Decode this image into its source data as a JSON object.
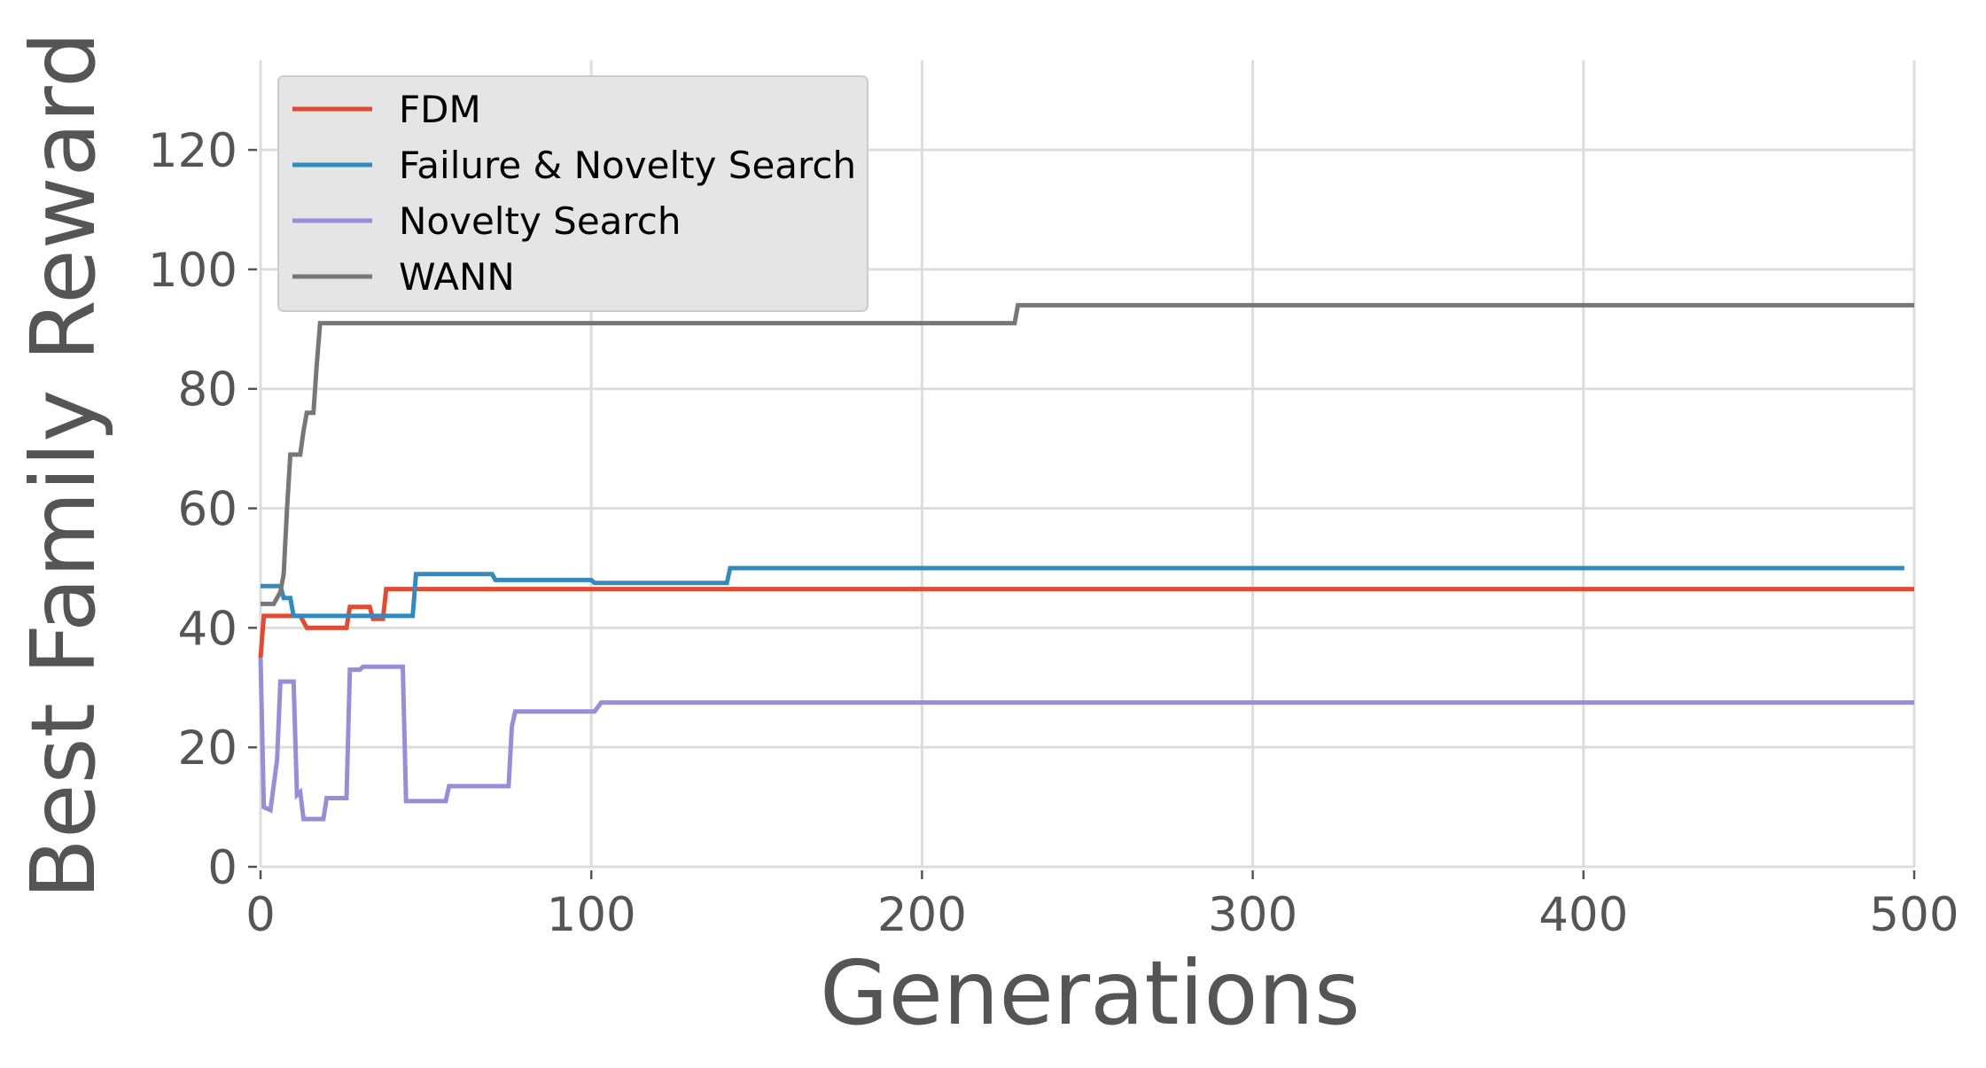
{
  "chart_data": {
    "type": "line",
    "title": "",
    "xlabel": "Generations",
    "ylabel": "Best Family Reward",
    "xlim": [
      0,
      500
    ],
    "ylim": [
      0,
      135
    ],
    "xticks": [
      0,
      100,
      200,
      300,
      400,
      500
    ],
    "yticks": [
      0,
      20,
      40,
      60,
      80,
      100,
      120
    ],
    "grid": true,
    "legend_position": "top-left",
    "series": [
      {
        "name": "FDM",
        "color": "#E24A33",
        "points": [
          [
            0,
            35
          ],
          [
            1,
            42
          ],
          [
            12,
            42
          ],
          [
            14,
            40
          ],
          [
            26,
            40
          ],
          [
            27,
            43.5
          ],
          [
            33,
            43.5
          ],
          [
            34,
            41.5
          ],
          [
            37,
            41.5
          ],
          [
            38,
            46.5
          ],
          [
            500,
            46.5
          ]
        ]
      },
      {
        "name": "Failure & Novelty Search",
        "color": "#348ABD",
        "points": [
          [
            0,
            47
          ],
          [
            6,
            47
          ],
          [
            7,
            45
          ],
          [
            9,
            45
          ],
          [
            10,
            42
          ],
          [
            46,
            42
          ],
          [
            47,
            49
          ],
          [
            70,
            49
          ],
          [
            71,
            48
          ],
          [
            100,
            48
          ],
          [
            101,
            47.5
          ],
          [
            141,
            47.5
          ],
          [
            142,
            50
          ],
          [
            497,
            50
          ]
        ]
      },
      {
        "name": "Novelty Search",
        "color": "#988ED5",
        "points": [
          [
            0,
            35
          ],
          [
            1,
            10
          ],
          [
            3,
            9.5
          ],
          [
            5,
            18
          ],
          [
            6,
            31
          ],
          [
            10,
            31
          ],
          [
            11,
            12
          ],
          [
            12,
            12.5
          ],
          [
            13,
            8
          ],
          [
            19,
            8
          ],
          [
            20,
            11.5
          ],
          [
            26,
            11.5
          ],
          [
            27,
            33
          ],
          [
            30,
            33
          ],
          [
            31,
            33.5
          ],
          [
            43,
            33.5
          ],
          [
            44,
            11
          ],
          [
            56,
            11
          ],
          [
            57,
            13.5
          ],
          [
            75,
            13.5
          ],
          [
            76,
            23.5
          ],
          [
            77,
            26
          ],
          [
            101,
            26
          ],
          [
            103,
            27.5
          ],
          [
            500,
            27.5
          ]
        ]
      },
      {
        "name": "WANN",
        "color": "#777777",
        "points": [
          [
            0,
            44
          ],
          [
            4,
            44
          ],
          [
            6,
            46
          ],
          [
            7,
            49
          ],
          [
            8,
            60
          ],
          [
            9,
            69
          ],
          [
            12,
            69
          ],
          [
            13,
            73
          ],
          [
            14,
            76
          ],
          [
            16,
            76
          ],
          [
            17,
            84
          ],
          [
            18,
            91
          ],
          [
            228,
            91
          ],
          [
            229,
            94
          ],
          [
            500,
            94
          ]
        ]
      }
    ]
  }
}
